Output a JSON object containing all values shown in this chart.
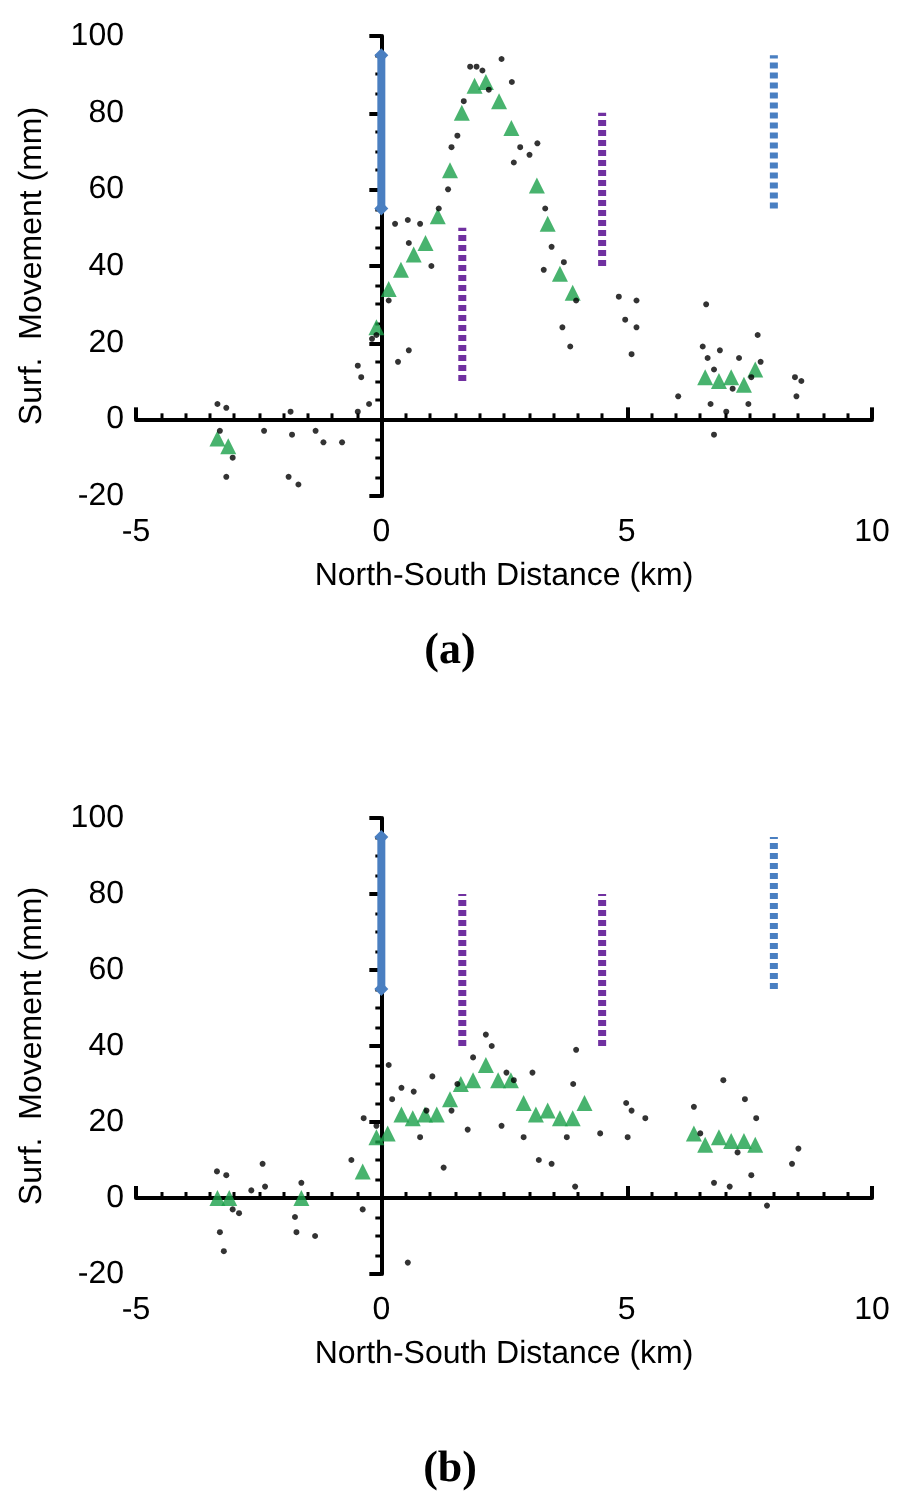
{
  "chart_data": [
    {
      "type": "scatter",
      "title": "(a)",
      "xlabel": "North-South Distance (km)",
      "ylabel": "Surf.  Movement (mm)",
      "xlim": [
        -5,
        10
      ],
      "xticks": [
        -5,
        0,
        5,
        10
      ],
      "ylim": [
        -20,
        100
      ],
      "yticks": [
        -20,
        0,
        20,
        40,
        60,
        80,
        100
      ],
      "series": [
        {
          "type": "scatter",
          "marker": "circle",
          "color": "#000000",
          "x": [
            -3.34,
            -3.16,
            -3.29,
            -3.03,
            -3.16,
            -2.39,
            -1.85,
            -1.82,
            -1.89,
            -1.69,
            -1.34,
            -1.18,
            -0.8,
            -0.48,
            -0.25,
            -0.41,
            -0.48,
            -0.19,
            -0.1,
            0.34,
            0.56,
            0.15,
            0.28,
            0.54,
            0.79,
            0.56,
            1.02,
            1.17,
            1.36,
            1.43,
            1.55,
            1.68,
            1.81,
            1.94,
            2.06,
            2.19,
            2.45,
            2.66,
            2.83,
            2.7,
            3.02,
            3.18,
            3.34,
            3.31,
            3.47,
            3.72,
            3.69,
            3.85,
            3.97,
            4.84,
            5.2,
            4.97,
            5.2,
            5.1,
            6.05,
            6.62,
            6.55,
            6.65,
            6.78,
            6.9,
            6.71,
            6.78,
            7.03,
            7.16,
            7.29,
            7.48,
            7.67,
            7.54,
            7.73,
            8.43,
            8.56,
            8.46
          ],
          "values": [
            4,
            3,
            -3,
            -10,
            -15,
            -3,
            2,
            -4,
            -15,
            -17,
            -3,
            -6,
            -6,
            2,
            4,
            11,
            14,
            21,
            22,
            15,
            18,
            31,
            51,
            52,
            51,
            46,
            40,
            55,
            60,
            71,
            74,
            83,
            92,
            92,
            91,
            86,
            94,
            88,
            71,
            67,
            69,
            72,
            55,
            39,
            45,
            41,
            24,
            19,
            31,
            32,
            31,
            26,
            24,
            17,
            6,
            30,
            19,
            16,
            13,
            18,
            4,
            -4,
            2,
            8,
            16,
            4,
            22,
            11,
            15,
            11,
            10,
            6
          ]
        },
        {
          "type": "scatter",
          "marker": "triangle",
          "color": "#1aa04a",
          "x": [
            -3.34,
            -3.12,
            -0.1,
            0.15,
            0.4,
            0.66,
            0.9,
            1.15,
            1.4,
            1.64,
            1.9,
            2.13,
            2.4,
            2.65,
            3.17,
            3.39,
            3.64,
            3.9,
            6.6,
            6.88,
            7.13,
            7.39,
            7.62
          ],
          "values": [
            -5,
            -7,
            24,
            34,
            39,
            43,
            46,
            53,
            65,
            80,
            87,
            88,
            83,
            76,
            61,
            51,
            38,
            33,
            11,
            10,
            11,
            9,
            13
          ]
        },
        {
          "type": "line",
          "marker": "diamond",
          "line_style": "solid",
          "color": "#4a7fc1",
          "x": [
            0,
            0
          ],
          "values": [
            55,
            95
          ]
        },
        {
          "type": "line",
          "marker": "none",
          "line_style": "dotted",
          "color": "#7030a0",
          "x": [
            1.65,
            1.65
          ],
          "values": [
            10,
            50
          ]
        },
        {
          "type": "line",
          "marker": "none",
          "line_style": "dotted",
          "color": "#7030a0",
          "x": [
            4.5,
            4.5
          ],
          "values": [
            40,
            80
          ]
        },
        {
          "type": "line",
          "marker": "none",
          "line_style": "dotted",
          "color": "#4a7fc1",
          "x": [
            8,
            8
          ],
          "values": [
            55,
            95
          ]
        }
      ]
    },
    {
      "type": "scatter",
      "title": "(b)",
      "xlabel": "North-South Distance (km)",
      "ylabel": "Surf.  Movement (mm)",
      "xlim": [
        -5,
        10
      ],
      "xticks": [
        -5,
        0,
        5,
        10
      ],
      "ylim": [
        -20,
        100
      ],
      "yticks": [
        -20,
        0,
        20,
        40,
        60,
        80,
        100
      ],
      "series": [
        {
          "type": "scatter",
          "marker": "circle",
          "color": "#000000",
          "x": [
            -3.35,
            -3.16,
            -3.29,
            -3.21,
            -3.03,
            -2.9,
            -2.65,
            -2.42,
            -2.37,
            -1.76,
            -1.73,
            -1.63,
            -1.35,
            -0.61,
            -0.38,
            -0.36,
            -0.1,
            0.15,
            0.22,
            0.54,
            0.41,
            0.66,
            0.79,
            0.92,
            1.04,
            1.27,
            1.43,
            1.55,
            1.76,
            1.87,
            2.13,
            2.25,
            2.45,
            2.55,
            2.7,
            2.9,
            3.08,
            3.21,
            3.47,
            3.78,
            3.91,
            3.97,
            3.95,
            4.46,
            4.99,
            5.1,
            5.02,
            5.38,
            6.37,
            6.5,
            6.78,
            6.97,
            7.1,
            7.26,
            7.41,
            7.54,
            7.64,
            7.86,
            8.37,
            8.5
          ],
          "values": [
            7,
            6,
            -9,
            -14,
            -3,
            -4,
            2,
            9,
            3,
            -5,
            -9,
            4,
            -10,
            10,
            -3,
            21,
            19,
            35,
            26,
            -17,
            29,
            28,
            16,
            23,
            32,
            8,
            23,
            30,
            18,
            37,
            43,
            40,
            19,
            33,
            31,
            16,
            33,
            10,
            9,
            16,
            30,
            39,
            3,
            17,
            25,
            23,
            16,
            21,
            24,
            17,
            4,
            31,
            3,
            12,
            26,
            6,
            21,
            -2,
            9,
            13
          ]
        },
        {
          "type": "scatter",
          "marker": "triangle",
          "color": "#1aa04a",
          "x": [
            -3.34,
            -3.1,
            -1.63,
            -0.38,
            -0.1,
            0.13,
            0.41,
            0.64,
            0.89,
            1.13,
            1.4,
            1.62,
            1.87,
            2.13,
            2.38,
            2.64,
            2.9,
            3.15,
            3.39,
            3.64,
            3.9,
            4.14,
            6.37,
            6.6,
            6.88,
            7.13,
            7.39,
            7.62
          ],
          "values": [
            0,
            0,
            0,
            7,
            16,
            17,
            22,
            21,
            22,
            22,
            26,
            30,
            31,
            35,
            31,
            31,
            25,
            22,
            23,
            21,
            21,
            25,
            17,
            14,
            16,
            15,
            15,
            14
          ]
        },
        {
          "type": "line",
          "marker": "diamond",
          "line_style": "solid",
          "color": "#4a7fc1",
          "x": [
            0,
            0
          ],
          "values": [
            55,
            95
          ]
        },
        {
          "type": "line",
          "marker": "none",
          "line_style": "dotted",
          "color": "#7030a0",
          "x": [
            1.65,
            1.65
          ],
          "values": [
            40,
            80
          ]
        },
        {
          "type": "line",
          "marker": "none",
          "line_style": "dotted",
          "color": "#7030a0",
          "x": [
            4.5,
            4.5
          ],
          "values": [
            40,
            80
          ]
        },
        {
          "type": "line",
          "marker": "none",
          "line_style": "dotted",
          "color": "#4a7fc1",
          "x": [
            8,
            8
          ],
          "values": [
            55,
            95
          ]
        }
      ]
    }
  ]
}
